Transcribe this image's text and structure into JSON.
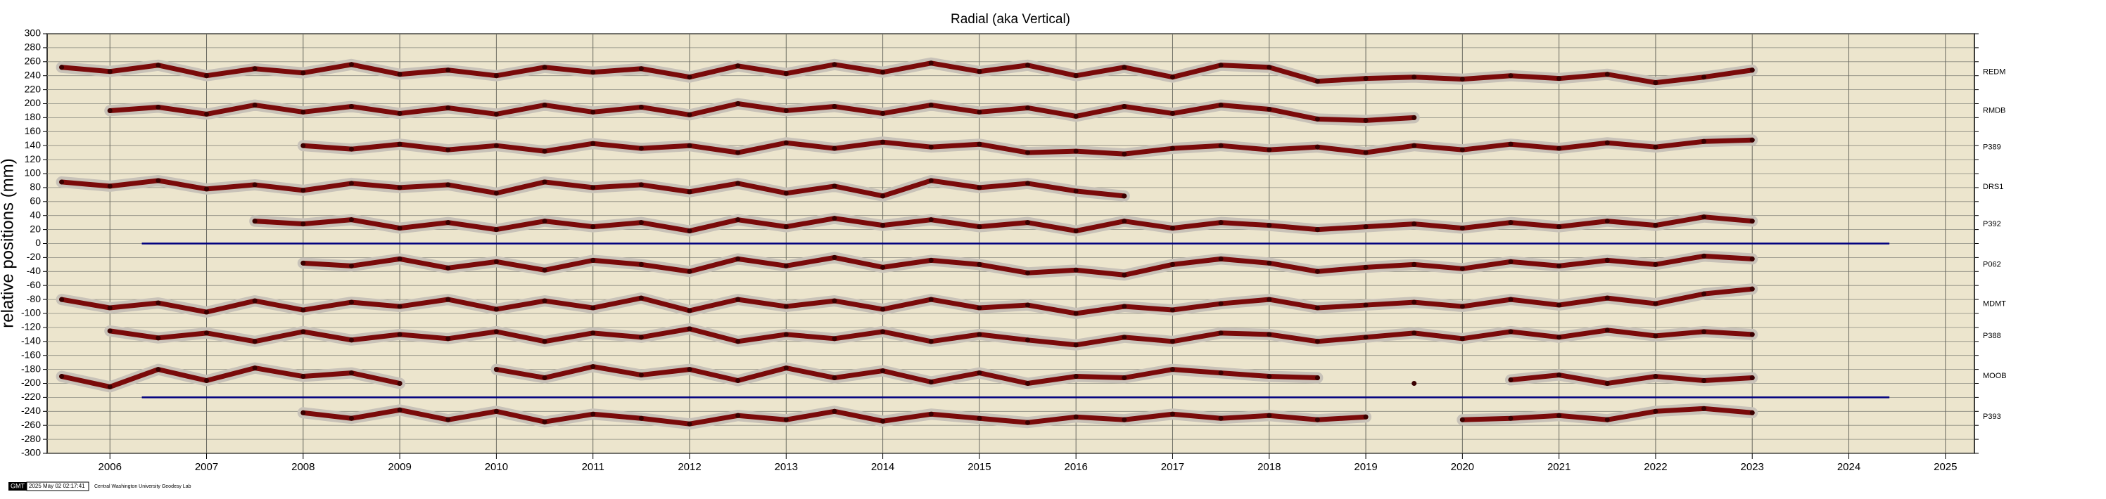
{
  "chart_data": {
    "type": "scatter",
    "title": "Radial (aka Vertical)",
    "y_label": "relative positions (mm)",
    "x": [
      2005.5,
      2006,
      2006.5,
      2007,
      2007.5,
      2008,
      2008.5,
      2009,
      2009.5,
      2010,
      2010.5,
      2011,
      2011.5,
      2012,
      2012.5,
      2013,
      2013.5,
      2014,
      2014.5,
      2015,
      2015.5,
      2016,
      2016.5,
      2017,
      2017.5,
      2018,
      2018.5,
      2019,
      2019.5,
      2020,
      2020.5,
      2021,
      2021.5,
      2022,
      2022.5,
      2023
    ],
    "xlim": [
      2005.35,
      2025.3
    ],
    "xticks": [
      2006,
      2007,
      2008,
      2009,
      2010,
      2011,
      2012,
      2013,
      2014,
      2015,
      2016,
      2017,
      2018,
      2019,
      2020,
      2021,
      2022,
      2023,
      2024,
      2025
    ],
    "ylim": [
      -300,
      300
    ],
    "yticks": [
      -300,
      -280,
      -260,
      -240,
      -220,
      -200,
      -180,
      -160,
      -140,
      -120,
      -100,
      -80,
      -60,
      -40,
      -20,
      0,
      20,
      40,
      60,
      80,
      100,
      120,
      140,
      160,
      180,
      200,
      220,
      240,
      260,
      280,
      300
    ],
    "grid": true,
    "series": [
      {
        "name": "REDM",
        "color": "#7a0a0a",
        "values": [
          252,
          246,
          255,
          240,
          250,
          244,
          256,
          242,
          248,
          240,
          252,
          245,
          250,
          238,
          254,
          243,
          256,
          245,
          258,
          246,
          255,
          240,
          252,
          238,
          255,
          252,
          232,
          236,
          238,
          235,
          240,
          236,
          242,
          230,
          238,
          248
        ]
      },
      {
        "name": "RMDB",
        "color": "#7a0a0a",
        "values": [
          null,
          190,
          195,
          185,
          198,
          188,
          196,
          186,
          194,
          185,
          198,
          188,
          195,
          184,
          200,
          190,
          196,
          186,
          198,
          188,
          194,
          182,
          196,
          186,
          198,
          192,
          178,
          176,
          180,
          null,
          null,
          null,
          null,
          null,
          null,
          null
        ]
      },
      {
        "name": "P389",
        "color": "#7a0a0a",
        "values": [
          null,
          null,
          null,
          null,
          null,
          140,
          135,
          142,
          134,
          140,
          132,
          143,
          136,
          140,
          130,
          144,
          136,
          145,
          138,
          142,
          130,
          132,
          128,
          136,
          140,
          134,
          138,
          130,
          140,
          134,
          142,
          136,
          144,
          138,
          146,
          148
        ]
      },
      {
        "name": "DRS1",
        "color": "#7a0a0a",
        "values": [
          88,
          82,
          90,
          78,
          84,
          76,
          86,
          80,
          84,
          72,
          88,
          80,
          84,
          74,
          86,
          72,
          82,
          68,
          90,
          80,
          86,
          75,
          68,
          null,
          null,
          null,
          null,
          null,
          null,
          null,
          null,
          null,
          null,
          null,
          null,
          null
        ]
      },
      {
        "name": "P392",
        "color": "#7a0a0a",
        "values": [
          null,
          null,
          null,
          null,
          32,
          28,
          34,
          22,
          30,
          20,
          32,
          24,
          30,
          18,
          34,
          24,
          36,
          26,
          34,
          24,
          30,
          18,
          32,
          22,
          30,
          26,
          20,
          24,
          28,
          22,
          30,
          24,
          32,
          26,
          38,
          32
        ]
      },
      {
        "name": "P062",
        "color": "#7a0a0a",
        "values": [
          null,
          null,
          null,
          null,
          null,
          -28,
          -32,
          -22,
          -35,
          -26,
          -38,
          -24,
          -30,
          -40,
          -22,
          -32,
          -20,
          -34,
          -24,
          -30,
          -42,
          -38,
          -45,
          -30,
          -22,
          -28,
          -40,
          -34,
          -30,
          -36,
          -26,
          -32,
          -24,
          -30,
          -18,
          -22
        ]
      },
      {
        "name": "MDMT",
        "color": "#7a0a0a",
        "values": [
          -80,
          -92,
          -85,
          -98,
          -82,
          -95,
          -84,
          -90,
          -80,
          -94,
          -82,
          -92,
          -78,
          -96,
          -80,
          -90,
          -82,
          -94,
          -80,
          -92,
          -88,
          -100,
          -90,
          -95,
          -86,
          -80,
          -92,
          -88,
          -84,
          -90,
          -80,
          -88,
          -78,
          -86,
          -72,
          -65
        ]
      },
      {
        "name": "P388",
        "color": "#7a0a0a",
        "values": [
          null,
          -125,
          -135,
          -128,
          -140,
          -126,
          -138,
          -130,
          -136,
          -126,
          -140,
          -128,
          -134,
          -122,
          -140,
          -130,
          -136,
          -126,
          -140,
          -130,
          -138,
          -145,
          -134,
          -140,
          -128,
          -130,
          -140,
          -134,
          -128,
          -136,
          -126,
          -134,
          -124,
          -132,
          -126,
          -130
        ]
      },
      {
        "name": "MOOB",
        "color": "#7a0a0a",
        "values": [
          -190,
          -205,
          -180,
          -196,
          -178,
          -190,
          -185,
          -200,
          null,
          -180,
          -192,
          -176,
          -188,
          -180,
          -196,
          -178,
          -192,
          -182,
          -198,
          -185,
          -200,
          -190,
          -192,
          -180,
          -185,
          -190,
          -192,
          null,
          -200,
          null,
          -195,
          -188,
          -200,
          -190,
          -196,
          -192
        ]
      },
      {
        "name": "P393",
        "color": "#7a0a0a",
        "values": [
          null,
          null,
          null,
          null,
          null,
          -242,
          -250,
          -238,
          -252,
          -240,
          -255,
          -244,
          -250,
          -258,
          -246,
          -252,
          -240,
          -254,
          -244,
          -250,
          -256,
          -248,
          -252,
          -244,
          -250,
          -246,
          -252,
          -248,
          null,
          -252,
          -250,
          -246,
          -252,
          -240,
          -236,
          -242
        ]
      }
    ],
    "reference_lines": [
      {
        "value": 0,
        "x": [
          2006.33,
          2024.42
        ],
        "color": "#00007f"
      },
      {
        "value": -220,
        "x": [
          2006.33,
          2024.42
        ],
        "color": "#00007f"
      }
    ]
  },
  "footer": {
    "logo": "GMT",
    "timestamp": "2025 May 02 02:17:41",
    "credit": "Central Washington University Geodesy Lab"
  }
}
